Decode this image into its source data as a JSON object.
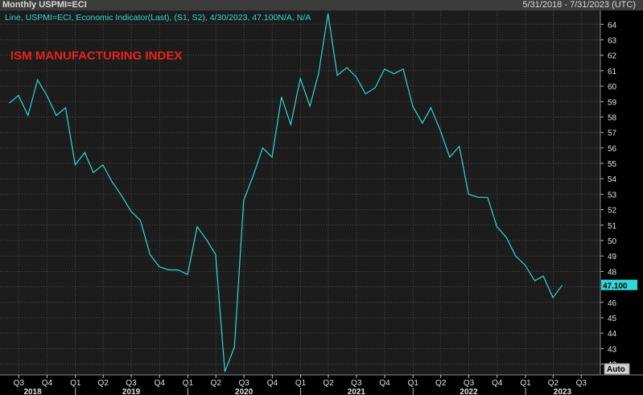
{
  "header": {
    "title": "Monthly USPMI=ECI",
    "date_range": "5/31/2018 - 7/31/2023 (UTC)"
  },
  "legend": {
    "text": "Line, USPMI=ECI, Economic Indicator(Last), (S1, S2), 4/30/2023, 47.100N/A, N/A"
  },
  "annotation": {
    "text": "ISM MANUFACTURING INDEX",
    "color": "#e8211a"
  },
  "auto_button": {
    "label": "Auto"
  },
  "colors": {
    "background": "#000000",
    "plot_background": "#1c1c1c",
    "grid": "#4a4a4a",
    "line": "#2ed8d8",
    "last_value_bg": "#2ed8d8"
  },
  "chart_data": {
    "type": "line",
    "title": "ISM MANUFACTURING INDEX",
    "series": [
      {
        "name": "USPMI=ECI",
        "x": [
          "2018-05-31",
          "2018-06-30",
          "2018-07-31",
          "2018-08-31",
          "2018-09-30",
          "2018-10-31",
          "2018-11-30",
          "2018-12-31",
          "2019-01-31",
          "2019-02-28",
          "2019-03-31",
          "2019-04-30",
          "2019-05-31",
          "2019-06-30",
          "2019-07-31",
          "2019-08-31",
          "2019-09-30",
          "2019-10-31",
          "2019-11-30",
          "2019-12-31",
          "2020-01-31",
          "2020-02-29",
          "2020-03-31",
          "2020-04-30",
          "2020-05-31",
          "2020-06-30",
          "2020-07-31",
          "2020-08-31",
          "2020-09-30",
          "2020-10-31",
          "2020-11-30",
          "2020-12-31",
          "2021-01-31",
          "2021-02-28",
          "2021-03-31",
          "2021-04-30",
          "2021-05-31",
          "2021-06-30",
          "2021-07-31",
          "2021-08-31",
          "2021-09-30",
          "2021-10-31",
          "2021-11-30",
          "2021-12-31",
          "2022-01-31",
          "2022-02-28",
          "2022-03-31",
          "2022-04-30",
          "2022-05-31",
          "2022-06-30",
          "2022-07-31",
          "2022-08-31",
          "2022-09-30",
          "2022-10-31",
          "2022-11-30",
          "2022-12-31",
          "2023-01-31",
          "2023-02-28",
          "2023-03-31",
          "2023-04-30"
        ],
        "values": [
          58.9,
          59.4,
          58.1,
          60.4,
          59.4,
          58.1,
          58.6,
          54.9,
          55.7,
          54.4,
          54.9,
          53.8,
          52.9,
          51.9,
          51.3,
          49.1,
          48.3,
          48.1,
          48.1,
          47.8,
          50.9,
          50.1,
          49.1,
          41.5,
          43.1,
          52.6,
          54.2,
          56.0,
          55.4,
          59.3,
          57.5,
          60.5,
          58.7,
          60.8,
          64.7,
          60.7,
          61.2,
          60.6,
          59.5,
          59.9,
          61.1,
          60.8,
          61.1,
          58.7,
          57.6,
          58.6,
          57.1,
          55.4,
          56.1,
          53.0,
          52.8,
          52.8,
          50.9,
          50.2,
          49.0,
          48.4,
          47.4,
          47.7,
          46.3,
          47.1
        ]
      }
    ],
    "last_value": "47.100",
    "ylim": [
      41.3,
      64.9
    ],
    "yticks": [
      42,
      43,
      44,
      45,
      46,
      47,
      48,
      49,
      50,
      51,
      52,
      53,
      54,
      55,
      56,
      57,
      58,
      59,
      60,
      61,
      62,
      63,
      64
    ],
    "ytick_labels": [
      "42",
      "43",
      "44",
      "45",
      "46",
      "",
      "48",
      "49",
      "50",
      "51",
      "52",
      "53",
      "54",
      "55",
      "56",
      "57",
      "58",
      "59",
      "60",
      "61",
      "62",
      "63",
      "64"
    ],
    "xlim": [
      "2018-05-01",
      "2023-09-01"
    ],
    "quarter_ticks": [
      {
        "date": "2018-07-01",
        "label": "Q3"
      },
      {
        "date": "2018-10-01",
        "label": "Q4"
      },
      {
        "date": "2019-01-01",
        "label": "Q1"
      },
      {
        "date": "2019-04-01",
        "label": "Q2"
      },
      {
        "date": "2019-07-01",
        "label": "Q3"
      },
      {
        "date": "2019-10-01",
        "label": "Q4"
      },
      {
        "date": "2020-01-01",
        "label": "Q1"
      },
      {
        "date": "2020-04-01",
        "label": "Q2"
      },
      {
        "date": "2020-07-01",
        "label": "Q3"
      },
      {
        "date": "2020-10-01",
        "label": "Q4"
      },
      {
        "date": "2021-01-01",
        "label": "Q1"
      },
      {
        "date": "2021-04-01",
        "label": "Q2"
      },
      {
        "date": "2021-07-01",
        "label": "Q3"
      },
      {
        "date": "2021-10-01",
        "label": "Q4"
      },
      {
        "date": "2022-01-01",
        "label": "Q1"
      },
      {
        "date": "2022-04-01",
        "label": "Q2"
      },
      {
        "date": "2022-07-01",
        "label": "Q3"
      },
      {
        "date": "2022-10-01",
        "label": "Q4"
      },
      {
        "date": "2023-01-01",
        "label": "Q1"
      },
      {
        "date": "2023-04-01",
        "label": "Q2"
      },
      {
        "date": "2023-07-01",
        "label": "Q3"
      }
    ],
    "year_labels": [
      {
        "date": "2018-08-15",
        "label": "2018"
      },
      {
        "date": "2019-07-01",
        "label": "2019"
      },
      {
        "date": "2020-07-01",
        "label": "2020"
      },
      {
        "date": "2021-07-01",
        "label": "2021"
      },
      {
        "date": "2022-07-01",
        "label": "2022"
      },
      {
        "date": "2023-05-01",
        "label": "2023"
      }
    ],
    "grid": true,
    "legend_position": "top-left"
  }
}
